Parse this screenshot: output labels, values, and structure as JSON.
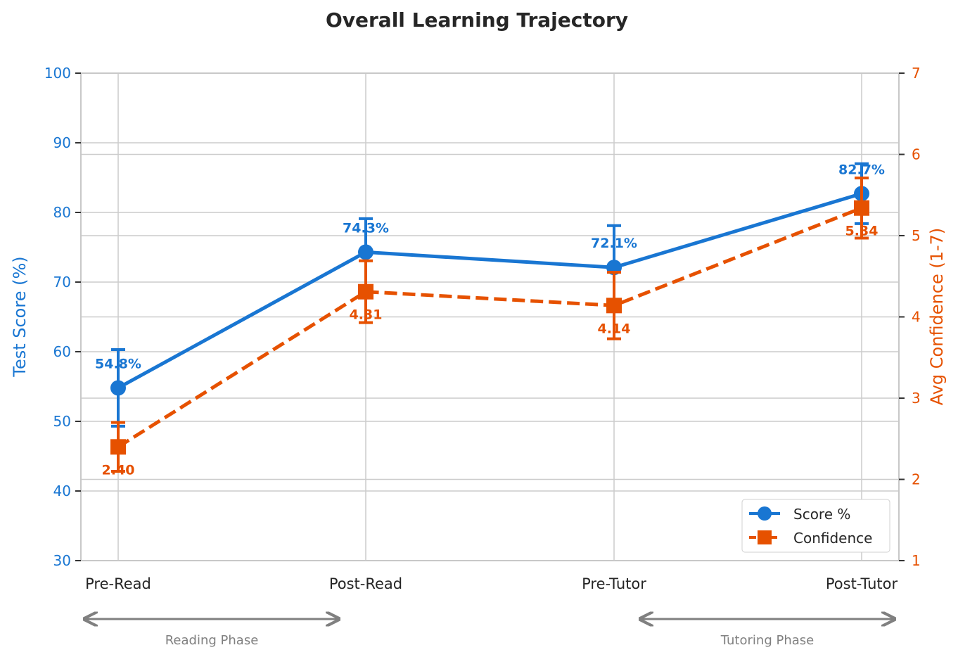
{
  "chart_data": {
    "type": "line",
    "title": "Overall Learning Trajectory",
    "categories": [
      "Pre-Read",
      "Post-Read",
      "Pre-Tutor",
      "Post-Tutor"
    ],
    "y_left": {
      "label": "Test Score (%)",
      "range": [
        30,
        100
      ],
      "ticks": [
        30,
        40,
        50,
        60,
        70,
        80,
        90,
        100
      ],
      "color": "#1976d2"
    },
    "y_right": {
      "label": "Avg Confidence (1-7)",
      "range": [
        1,
        7
      ],
      "ticks": [
        1,
        2,
        3,
        4,
        5,
        6,
        7
      ],
      "color": "#e65100"
    },
    "grid": true,
    "legend_position": "bottom-right",
    "series": [
      {
        "name": "Score %",
        "axis": "left",
        "color": "#1976d2",
        "marker": "circle",
        "line": "solid",
        "values": [
          54.8,
          74.3,
          72.1,
          82.7
        ],
        "errors": [
          5.5,
          4.8,
          6.0,
          4.3
        ],
        "labels": [
          "54.8%",
          "74.3%",
          "72.1%",
          "82.7%"
        ]
      },
      {
        "name": "Confidence",
        "axis": "right",
        "color": "#e65100",
        "marker": "square",
        "line": "dashed",
        "values": [
          2.4,
          4.31,
          4.14,
          5.34
        ],
        "errors": [
          0.3,
          0.38,
          0.41,
          0.37
        ],
        "labels": [
          "2.40",
          "4.31",
          "4.14",
          "5.34"
        ]
      }
    ],
    "annotations": [
      {
        "text": "Reading Phase",
        "from": "Pre-Read",
        "to": "Post-Read"
      },
      {
        "text": "Tutoring Phase",
        "from": "Pre-Tutor",
        "to": "Post-Tutor"
      }
    ]
  }
}
